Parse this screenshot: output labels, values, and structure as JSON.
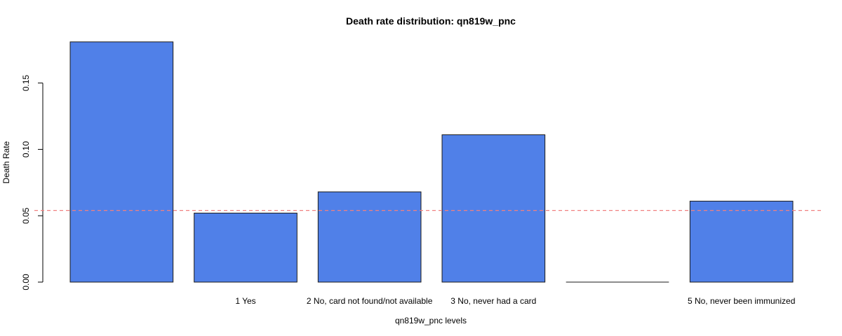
{
  "chart_data": {
    "type": "bar",
    "title": "Death rate distribution: qn819w_pnc",
    "xlabel": "qn819w_pnc levels",
    "ylabel": "Death Rate",
    "categories": [
      "",
      "1  Yes",
      "2 No, card not found/not available",
      "3 No, never had a card",
      "",
      "5 No, never been immunized"
    ],
    "values": [
      0.181,
      0.052,
      0.068,
      0.111,
      0.0,
      0.061
    ],
    "ylim": [
      0,
      0.18
    ],
    "yticks": [
      0.0,
      0.05,
      0.1,
      0.15
    ],
    "ytick_labels": [
      "0.00",
      "0.05",
      "0.10",
      "0.15"
    ],
    "reference_line": {
      "value": 0.054,
      "style": "dashed",
      "color": "#f08080"
    },
    "bar_color": "#5080e8",
    "bar_border_color": "#1a1a1a",
    "grid": false,
    "legend": "none"
  }
}
